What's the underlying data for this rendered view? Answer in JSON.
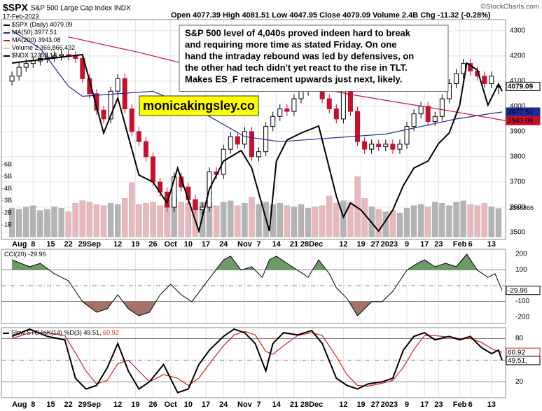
{
  "chart_data": [
    {
      "type": "candlestick",
      "title": "$SPX",
      "subtitle": "S&P 500 Large Cap Index INDX",
      "date": "17-Feb-2023",
      "quote": "Open 4077.39 High 4081.51 Low 4047.95 Close 4079.09 Volume 2.4B Chg -11.32 (-0.28%)",
      "source": "©StockCharts.com",
      "annotation": [
        "S&P 500 level of 4,040s proved indeen hard to break",
        "and requiring more time as stated Friday. On one",
        "hand the intraday rebound was led by defensives, on",
        "the other had tech didn't yet react to the rise in TLT.",
        "Makes ES_F retracement upwards just next, likely."
      ],
      "watermark": "monicakingsley.co",
      "xlim": [
        -3,
        140
      ],
      "xticks": [
        {
          "value": 0,
          "label": "Aug"
        },
        {
          "value": 6,
          "label": "8"
        },
        {
          "value": 11,
          "label": "15"
        },
        {
          "value": 16,
          "label": "22"
        },
        {
          "value": 22,
          "label": "29Sep"
        },
        {
          "value": 30,
          "label": "12"
        },
        {
          "value": 35,
          "label": "19"
        },
        {
          "value": 40,
          "label": "26"
        },
        {
          "value": 45,
          "label": "Oct"
        },
        {
          "value": 50,
          "label": "10"
        },
        {
          "value": 55,
          "label": "17"
        },
        {
          "value": 60,
          "label": "24"
        },
        {
          "value": 66,
          "label": "Nov"
        },
        {
          "value": 70,
          "label": "7"
        },
        {
          "value": 75,
          "label": "14"
        },
        {
          "value": 80,
          "label": "21"
        },
        {
          "value": 85,
          "label": "28Dec"
        },
        {
          "value": 94,
          "label": "12"
        },
        {
          "value": 99,
          "label": "19"
        },
        {
          "value": 103,
          "label": "27"
        },
        {
          "value": 107,
          "label": "2023"
        },
        {
          "value": 112,
          "label": "9"
        },
        {
          "value": 117,
          "label": "17"
        },
        {
          "value": 121,
          "label": "23"
        },
        {
          "value": 127,
          "label": "Feb"
        },
        {
          "value": 130,
          "label": "6"
        },
        {
          "value": 136,
          "label": "13"
        }
      ],
      "ylim": [
        3472,
        4344
      ],
      "yticks": [
        3500,
        3600,
        3700,
        3800,
        3900,
        4000,
        4100,
        4200,
        4300
      ],
      "y2lim": [
        10000,
        13500
      ],
      "grid": true,
      "candles": {
        "name": "$SPX (Daily)",
        "label": "4079.09",
        "up_color": "#000000",
        "down_color": "#c8102e",
        "x": [
          0,
          2,
          4,
          6,
          8,
          10,
          12,
          14,
          16,
          18,
          20,
          22,
          24,
          26,
          28,
          30,
          32,
          34,
          36,
          38,
          40,
          42,
          44,
          46,
          48,
          50,
          52,
          54,
          56,
          58,
          60,
          62,
          64,
          66,
          68,
          70,
          72,
          74,
          76,
          78,
          80,
          82,
          84,
          86,
          88,
          90,
          92,
          94,
          96,
          98,
          100,
          102,
          104,
          106,
          108,
          110,
          112,
          114,
          116,
          118,
          120,
          122,
          124,
          126,
          128,
          130,
          132,
          134,
          136,
          138
        ],
        "open": [
          4100,
          4120,
          4155,
          4170,
          4180,
          4190,
          4195,
          4200,
          4205,
          4200,
          4190,
          4110,
          4050,
          3985,
          3950,
          4060,
          4110,
          3990,
          3900,
          3860,
          3800,
          3700,
          3660,
          3600,
          3720,
          3680,
          3630,
          3590,
          3600,
          3740,
          3730,
          3830,
          3880,
          3850,
          3900,
          3800,
          3820,
          3920,
          3960,
          3990,
          3980,
          4030,
          4060,
          4090,
          4080,
          4030,
          3990,
          3950,
          4100,
          3980,
          3860,
          3830,
          3850,
          3840,
          3850,
          3830,
          3850,
          3920,
          3970,
          4000,
          3940,
          3960,
          4030,
          4090,
          4130,
          4170,
          4140,
          4120,
          4090,
          4077.39
        ],
        "high": [
          4138,
          4173,
          4188,
          4198,
          4208,
          4213,
          4218,
          4223,
          4223,
          4218,
          4208,
          4128,
          4068,
          4003,
          4078,
          4128,
          4128,
          4008,
          3918,
          3878,
          3818,
          3718,
          3678,
          3738,
          3738,
          3698,
          3648,
          3618,
          3758,
          3758,
          3848,
          3898,
          3898,
          3918,
          3918,
          3838,
          3938,
          3978,
          4008,
          4008,
          4048,
          4078,
          4108,
          4108,
          4098,
          4048,
          4008,
          4118,
          4118,
          3998,
          3878,
          3868,
          3868,
          3868,
          3868,
          3868,
          3938,
          3988,
          4018,
          4018,
          3978,
          4048,
          4108,
          4148,
          4188,
          4188,
          4158,
          4138,
          4138,
          4081.51
        ],
        "low": [
          4082,
          4102,
          4137,
          4152,
          4162,
          4172,
          4177,
          4182,
          4182,
          4172,
          4092,
          4032,
          3967,
          3932,
          3932,
          4042,
          3972,
          3882,
          3842,
          3782,
          3682,
          3642,
          3582,
          3582,
          3662,
          3612,
          3572,
          3572,
          3582,
          3712,
          3712,
          3812,
          3832,
          3832,
          3782,
          3782,
          3802,
          3902,
          3942,
          3962,
          3962,
          4012,
          4042,
          4062,
          4012,
          3972,
          3932,
          3932,
          3962,
          3842,
          3812,
          3812,
          3822,
          3822,
          3812,
          3812,
          3832,
          3902,
          3952,
          3922,
          3922,
          3942,
          4012,
          4072,
          4112,
          4122,
          4102,
          4072,
          4072,
          4047.95
        ],
        "close": [
          4120,
          4155,
          4170,
          4180,
          4190,
          4195,
          4200,
          4205,
          4200,
          4190,
          4110,
          4050,
          3985,
          3950,
          4060,
          4110,
          3990,
          3900,
          3860,
          3800,
          3700,
          3660,
          3600,
          3720,
          3680,
          3630,
          3590,
          3600,
          3740,
          3730,
          3830,
          3880,
          3850,
          3900,
          3800,
          3820,
          3920,
          3960,
          3990,
          3980,
          4030,
          4060,
          4090,
          4080,
          4030,
          3990,
          3950,
          4100,
          3980,
          3860,
          3830,
          3850,
          3840,
          3850,
          3830,
          3850,
          3920,
          3970,
          4000,
          3940,
          3960,
          4030,
          4090,
          4130,
          4170,
          4140,
          4120,
          4090,
          4120,
          4079.09
        ]
      },
      "volume": {
        "name": "Volume",
        "label": "2,366,866,432",
        "last_label": "2366866",
        "up_color": "#b4b4b4",
        "down_color": "#e9b8bc",
        "ylim": [
          -0.2,
          18
        ],
        "yticks": [
          {
            "value": 1,
            "label": "1B"
          },
          {
            "value": 2,
            "label": "2B"
          },
          {
            "value": 3,
            "label": "3B"
          },
          {
            "value": 4,
            "label": "4B"
          },
          {
            "value": 5,
            "label": "5B"
          },
          {
            "value": 6,
            "label": "6B"
          }
        ],
        "values": [
          2.4,
          2.3,
          2.5,
          2.6,
          2.2,
          2.3,
          2.5,
          2.4,
          2.1,
          2.8,
          3.0,
          2.9,
          2.7,
          2.6,
          2.8,
          2.7,
          3.2,
          4.5,
          2.7,
          2.8,
          2.9,
          2.6,
          2.7,
          3.3,
          2.9,
          2.8,
          3.1,
          2.9,
          2.8,
          2.6,
          2.9,
          3.0,
          2.6,
          2.8,
          3.3,
          2.7,
          2.9,
          2.7,
          2.8,
          2.6,
          2.5,
          2.7,
          2.4,
          2.5,
          2.6,
          3.4,
          2.8,
          3.0,
          2.9,
          5.0,
          3.2,
          2.5,
          2.3,
          2.1,
          2.2,
          2.0,
          2.4,
          2.6,
          2.7,
          2.5,
          2.9,
          2.8,
          2.6,
          2.9,
          3.0,
          2.7,
          2.6,
          2.8,
          2.5,
          2.37
        ]
      },
      "series": [
        {
          "name": "MA(50)",
          "label": "3977.51",
          "tag": true,
          "color": "#1f2a9c",
          "x": [
            0,
            8,
            16,
            20,
            30,
            40,
            50,
            56,
            66,
            76,
            86,
            96,
            106,
            116,
            126,
            136,
            139
          ],
          "values": [
            4300,
            4230,
            4080,
            4040,
            4050,
            4060,
            4000,
            3960,
            3880,
            3860,
            3870,
            3880,
            3890,
            3920,
            3950,
            3972,
            3977.51
          ]
        },
        {
          "name": "MA(200)",
          "label": "3943.08",
          "tag": true,
          "color": "#c8102e",
          "x": [
            16,
            36,
            56,
            76,
            86,
            96,
            108,
            120,
            140
          ],
          "values": [
            4275,
            4214,
            4144,
            4089,
            4075,
            4047,
            4019,
            3992,
            3943.08
          ]
        },
        {
          "name": "$NDX",
          "label": "12358.18",
          "tag": false,
          "color": "#000000",
          "axis": "y2",
          "x": [
            0,
            20,
            26,
            30,
            36,
            40,
            44,
            47,
            53,
            56,
            60,
            65,
            68,
            73,
            75,
            78,
            82,
            87,
            92,
            94,
            96,
            99,
            104,
            108,
            111,
            114,
            118,
            121,
            124,
            127,
            129,
            132,
            135,
            138,
            139
          ],
          "values": [
            12809,
            12943,
            11694,
            12251,
            11026,
            10914,
            10580,
            11137,
            10134,
            10803,
            11248,
            11416,
            11137,
            10134,
            11248,
            11583,
            11694,
            11806,
            10691,
            10357,
            10580,
            10468,
            10134,
            10468,
            10858,
            11137,
            11248,
            11527,
            11694,
            12140,
            12809,
            12697,
            12140,
            12475,
            12358.18
          ]
        }
      ]
    },
    {
      "type": "line",
      "name": "CCI(20)",
      "label": "-29.96",
      "color": "#000000",
      "ylim": [
        -240,
        231
      ],
      "yticks": [
        200,
        100,
        -100,
        -200
      ],
      "midline": 0,
      "fill_above": 100,
      "fill_above_color": "#6d9a67",
      "fill_below": -100,
      "fill_below_color": "#a4716b",
      "x": [
        0,
        5,
        8,
        12,
        16,
        20,
        24,
        27,
        30,
        33,
        36,
        39,
        42,
        45,
        48,
        51,
        54,
        57,
        60,
        62,
        65,
        68,
        71,
        73,
        75,
        78,
        81,
        84,
        87,
        90,
        92,
        95,
        98,
        100,
        102,
        105,
        108,
        110,
        112,
        115,
        117,
        120,
        123,
        126,
        129,
        132,
        135,
        137,
        139
      ],
      "values": [
        164,
        120,
        142,
        76,
        31,
        -102,
        -169,
        -147,
        -58,
        -147,
        -191,
        -169,
        -58,
        9,
        -58,
        -102,
        -13,
        76,
        164,
        187,
        98,
        120,
        53,
        164,
        187,
        142,
        98,
        53,
        164,
        76,
        -13,
        -80,
        -191,
        -147,
        -102,
        -102,
        -36,
        31,
        98,
        142,
        164,
        120,
        142,
        120,
        200,
        98,
        53,
        76,
        -29.96
      ]
    },
    {
      "type": "line",
      "title": "Slow STO",
      "ylim": [
        -2,
        95
      ],
      "yticks": [
        20,
        80
      ],
      "midline": 50,
      "x": [
        0,
        5,
        10,
        15,
        18,
        21,
        24,
        27,
        30,
        33,
        36,
        39,
        43,
        47,
        50,
        53,
        56,
        60,
        63,
        66,
        69,
        72,
        74,
        77,
        81,
        85,
        88,
        92,
        95,
        98,
        101,
        105,
        108,
        111,
        114,
        117,
        120,
        124,
        127,
        130,
        133,
        136,
        138,
        139
      ],
      "series": [
        {
          "name": "%K(14)",
          "label": "49.51,",
          "color": "#000000",
          "values": [
            83,
            93,
            83,
            78,
            25,
            10,
            15,
            39,
            73,
            35,
            10,
            20,
            44,
            5,
            10,
            44,
            64,
            83,
            93,
            88,
            73,
            35,
            73,
            88,
            85,
            91,
            73,
            25,
            15,
            10,
            17,
            20,
            25,
            64,
            83,
            88,
            78,
            83,
            78,
            83,
            68,
            59,
            64,
            49.51
          ]
        },
        {
          "name": "%D(3)",
          "label": "60.92",
          "color": "#d42020",
          "values": [
            80,
            88,
            88,
            84,
            60,
            35,
            17,
            22,
            45,
            50,
            35,
            20,
            30,
            25,
            15,
            25,
            45,
            70,
            85,
            90,
            85,
            62,
            58,
            70,
            84,
            88,
            84,
            55,
            30,
            15,
            14,
            18,
            22,
            40,
            65,
            84,
            84,
            82,
            80,
            80,
            75,
            66,
            62,
            60.92
          ]
        }
      ]
    }
  ]
}
